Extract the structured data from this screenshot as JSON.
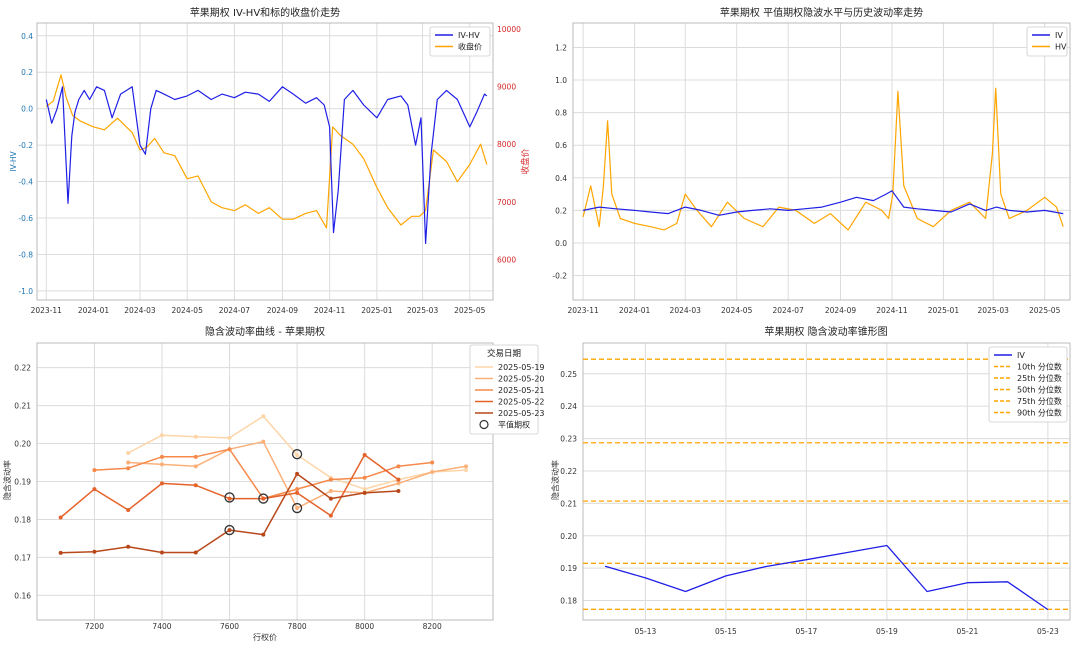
{
  "chart_data": [
    {
      "type": "line",
      "title": "苹果期权 IV-HV和标的收盘价走势",
      "xlabel": "",
      "ylabel": "IV-HV",
      "y2label": "收盘价",
      "ylim": [
        -1.05,
        0.47
      ],
      "y2lim": [
        5300,
        10100
      ],
      "yticks": [
        "0.4",
        "0.2",
        "0.0",
        "-0.2",
        "-0.4",
        "-0.6",
        "-0.8",
        "-1.0"
      ],
      "y2ticks": [
        "10000",
        "9000",
        "8000",
        "7000",
        "6000"
      ],
      "xticks": [
        "2023-11",
        "2024-01",
        "2024-03",
        "2024-05",
        "2024-07",
        "2024-09",
        "2024-11",
        "2025-01",
        "2025-03",
        "2025-05"
      ],
      "xlim": [
        "2023-10-20",
        "2025-05-31"
      ],
      "legend": [
        "IV-HV",
        "收盘价"
      ],
      "legend_position": "top-right",
      "grid": true,
      "series": [
        {
          "name": "IV-HV",
          "color": "#1f1fe6",
          "x": [
            "2023-11-01",
            "2023-11-08",
            "2023-11-15",
            "2023-11-22",
            "2023-11-29",
            "2023-12-04",
            "2023-12-08",
            "2023-12-13",
            "2023-12-20",
            "2023-12-27",
            "2024-01-05",
            "2024-01-15",
            "2024-01-25",
            "2024-02-05",
            "2024-02-20",
            "2024-03-01",
            "2024-03-08",
            "2024-03-15",
            "2024-03-22",
            "2024-04-01",
            "2024-04-15",
            "2024-05-01",
            "2024-05-15",
            "2024-06-01",
            "2024-06-15",
            "2024-07-01",
            "2024-07-15",
            "2024-08-01",
            "2024-08-15",
            "2024-09-01",
            "2024-09-15",
            "2024-10-01",
            "2024-10-15",
            "2024-10-25",
            "2024-11-01",
            "2024-11-06",
            "2024-11-12",
            "2024-11-20",
            "2024-12-01",
            "2024-12-15",
            "2025-01-01",
            "2025-01-15",
            "2025-02-01",
            "2025-02-10",
            "2025-02-20",
            "2025-02-27",
            "2025-03-05",
            "2025-03-12",
            "2025-03-20",
            "2025-04-01",
            "2025-04-15",
            "2025-05-01",
            "2025-05-10",
            "2025-05-20",
            "2025-05-23"
          ],
          "y": [
            0.05,
            -0.08,
            0.0,
            0.12,
            -0.52,
            -0.15,
            -0.02,
            0.05,
            0.1,
            0.05,
            0.12,
            0.1,
            -0.05,
            0.08,
            0.12,
            -0.2,
            -0.25,
            0.0,
            0.1,
            0.08,
            0.05,
            0.07,
            0.1,
            0.05,
            0.08,
            0.06,
            0.09,
            0.08,
            0.04,
            0.12,
            0.08,
            0.03,
            0.06,
            0.02,
            -0.1,
            -0.68,
            -0.45,
            0.05,
            0.1,
            0.02,
            -0.05,
            0.05,
            0.07,
            0.02,
            -0.2,
            -0.05,
            -0.74,
            -0.25,
            0.05,
            0.1,
            0.05,
            -0.1,
            -0.02,
            0.08,
            0.07
          ]
        },
        {
          "name": "收盘价",
          "color": "#ffa500",
          "x": [
            "2023-11-01",
            "2023-11-10",
            "2023-11-20",
            "2023-11-27",
            "2023-12-05",
            "2023-12-15",
            "2024-01-01",
            "2024-01-15",
            "2024-02-01",
            "2024-02-20",
            "2024-03-01",
            "2024-03-10",
            "2024-03-20",
            "2024-04-01",
            "2024-04-15",
            "2024-05-01",
            "2024-05-15",
            "2024-06-01",
            "2024-06-15",
            "2024-07-01",
            "2024-07-15",
            "2024-08-01",
            "2024-08-15",
            "2024-09-01",
            "2024-09-15",
            "2024-10-01",
            "2024-10-15",
            "2024-10-28",
            "2024-11-05",
            "2024-11-15",
            "2024-12-01",
            "2024-12-15",
            "2025-01-01",
            "2025-01-15",
            "2025-02-01",
            "2025-02-15",
            "2025-02-25",
            "2025-03-05",
            "2025-03-15",
            "2025-04-01",
            "2025-04-15",
            "2025-05-01",
            "2025-05-15",
            "2025-05-23"
          ],
          "y": [
            8650,
            8750,
            9200,
            8800,
            8500,
            8400,
            8300,
            8250,
            8450,
            8200,
            7900,
            7950,
            8100,
            7850,
            7800,
            7400,
            7450,
            7000,
            6900,
            6850,
            6950,
            6800,
            6900,
            6700,
            6700,
            6800,
            6850,
            6550,
            8300,
            8150,
            8000,
            7750,
            7250,
            6900,
            6600,
            6750,
            6750,
            6850,
            7900,
            7700,
            7350,
            7650,
            8000,
            7650
          ]
        }
      ]
    },
    {
      "type": "line",
      "title": "苹果期权 平值期权隐波水平与历史波动率走势",
      "xlabel": "",
      "ylabel": "",
      "ylim": [
        -0.35,
        1.35
      ],
      "yticks": [
        "1.2",
        "1.0",
        "0.8",
        "0.6",
        "0.4",
        "0.2",
        "0.0",
        "-0.2"
      ],
      "xticks": [
        "2023-11",
        "2024-01",
        "2024-03",
        "2024-05",
        "2024-07",
        "2024-09",
        "2024-11",
        "2025-01",
        "2025-03",
        "2025-05"
      ],
      "xlim": [
        "2023-10-20",
        "2025-05-31"
      ],
      "legend": [
        "IV",
        "HV"
      ],
      "legend_position": "top-right",
      "grid": true,
      "series": [
        {
          "name": "IV",
          "color": "#1f1fe6",
          "x": [
            "2023-11-01",
            "2023-11-20",
            "2023-12-10",
            "2024-01-01",
            "2024-01-20",
            "2024-02-10",
            "2024-03-01",
            "2024-03-20",
            "2024-04-10",
            "2024-05-01",
            "2024-05-20",
            "2024-06-10",
            "2024-07-01",
            "2024-07-20",
            "2024-08-10",
            "2024-09-01",
            "2024-09-20",
            "2024-10-10",
            "2024-10-25",
            "2024-11-01",
            "2024-11-15",
            "2024-12-01",
            "2024-12-20",
            "2025-01-10",
            "2025-02-01",
            "2025-02-20",
            "2025-03-05",
            "2025-03-20",
            "2025-04-10",
            "2025-05-01",
            "2025-05-23"
          ],
          "y": [
            0.2,
            0.22,
            0.21,
            0.2,
            0.19,
            0.18,
            0.22,
            0.2,
            0.17,
            0.19,
            0.2,
            0.21,
            0.2,
            0.21,
            0.22,
            0.25,
            0.28,
            0.26,
            0.3,
            0.32,
            0.22,
            0.21,
            0.2,
            0.19,
            0.24,
            0.2,
            0.22,
            0.2,
            0.19,
            0.2,
            0.18
          ]
        },
        {
          "name": "HV",
          "color": "#ffa500",
          "x": [
            "2023-11-01",
            "2023-11-10",
            "2023-11-20",
            "2023-11-25",
            "2023-11-30",
            "2023-12-05",
            "2023-12-15",
            "2024-01-01",
            "2024-01-20",
            "2024-02-05",
            "2024-02-20",
            "2024-03-01",
            "2024-03-15",
            "2024-04-01",
            "2024-04-20",
            "2024-05-10",
            "2024-06-01",
            "2024-06-20",
            "2024-07-10",
            "2024-08-01",
            "2024-08-20",
            "2024-09-10",
            "2024-10-01",
            "2024-10-20",
            "2024-10-28",
            "2024-11-02",
            "2024-11-08",
            "2024-11-15",
            "2024-12-01",
            "2024-12-20",
            "2025-01-10",
            "2025-02-01",
            "2025-02-20",
            "2025-02-28",
            "2025-03-04",
            "2025-03-10",
            "2025-03-20",
            "2025-04-10",
            "2025-05-01",
            "2025-05-15",
            "2025-05-23"
          ],
          "y": [
            0.16,
            0.35,
            0.1,
            0.35,
            0.75,
            0.3,
            0.15,
            0.12,
            0.1,
            0.08,
            0.12,
            0.3,
            0.2,
            0.1,
            0.25,
            0.15,
            0.1,
            0.22,
            0.2,
            0.12,
            0.18,
            0.08,
            0.25,
            0.2,
            0.15,
            0.3,
            0.93,
            0.35,
            0.15,
            0.1,
            0.2,
            0.25,
            0.15,
            0.55,
            0.95,
            0.3,
            0.15,
            0.2,
            0.28,
            0.22,
            0.1
          ]
        }
      ]
    },
    {
      "type": "line",
      "title": "隐含波动率曲线 - 苹果期权",
      "xlabel": "行权价",
      "ylabel": "隐含波动率",
      "xlim": [
        7030,
        8380
      ],
      "ylim": [
        0.1535,
        0.2265
      ],
      "xticks": [
        "7200",
        "7400",
        "7600",
        "7800",
        "8000",
        "8200"
      ],
      "yticks": [
        "0.22",
        "0.21",
        "0.20",
        "0.19",
        "0.18",
        "0.17",
        "0.16"
      ],
      "legend_title": "交易日期",
      "legend": [
        "2025-05-19",
        "2025-05-20",
        "2025-05-21",
        "2025-05-22",
        "2025-05-23",
        "平值期权"
      ],
      "legend_position": "top-right",
      "grid": true,
      "series": [
        {
          "name": "2025-05-19",
          "color": "#fdd5a8",
          "x": [
            7300,
            7400,
            7500,
            7600,
            7700,
            7800,
            7900,
            8000,
            8100,
            8200,
            8300
          ],
          "y": [
            0.1975,
            0.2022,
            0.2018,
            0.2015,
            0.2072,
            0.197,
            0.191,
            0.188,
            0.1905,
            0.1925,
            0.193
          ]
        },
        {
          "name": "2025-05-20",
          "color": "#fbb079",
          "x": [
            7300,
            7400,
            7500,
            7600,
            7700,
            7800,
            7900,
            8000,
            8100,
            8200,
            8300
          ],
          "y": [
            0.195,
            0.1945,
            0.194,
            0.1985,
            0.2005,
            0.183,
            0.1875,
            0.187,
            0.1895,
            0.1925,
            0.194
          ]
        },
        {
          "name": "2025-05-21",
          "color": "#f58a4b",
          "x": [
            7200,
            7300,
            7400,
            7500,
            7600,
            7700,
            7800,
            7900,
            8000,
            8100,
            8200
          ],
          "y": [
            0.193,
            0.1935,
            0.1965,
            0.1965,
            0.1985,
            0.1855,
            0.188,
            0.1905,
            0.191,
            0.194,
            0.195
          ]
        },
        {
          "name": "2025-05-22",
          "color": "#e5632b",
          "x": [
            7100,
            7200,
            7300,
            7400,
            7500,
            7600,
            7700,
            7800,
            7900,
            8000,
            8100
          ],
          "y": [
            0.1805,
            0.188,
            0.1825,
            0.1895,
            0.189,
            0.1855,
            0.1855,
            0.187,
            0.181,
            0.197,
            0.1905
          ]
        },
        {
          "name": "2025-05-23",
          "color": "#b8481a",
          "x": [
            7100,
            7200,
            7300,
            7400,
            7500,
            7600,
            7700,
            7800,
            7900,
            8000,
            8100
          ],
          "y": [
            0.1712,
            0.1715,
            0.1728,
            0.1713,
            0.1713,
            0.1772,
            0.176,
            0.192,
            0.1855,
            0.187,
            0.1875
          ]
        }
      ],
      "atm_points": [
        {
          "x": 7600,
          "y": 0.1858
        },
        {
          "x": 7700,
          "y": 0.1855
        },
        {
          "x": 7800,
          "y": 0.1972
        },
        {
          "x": 7800,
          "y": 0.183
        },
        {
          "x": 7600,
          "y": 0.1772
        }
      ]
    },
    {
      "type": "line",
      "title": "苹果期权 隐含波动率锥形图",
      "xlabel": "",
      "ylabel": "隐含波动率",
      "ylim": [
        0.174,
        0.2595
      ],
      "yticks": [
        "0.25",
        "0.24",
        "0.23",
        "0.22",
        "0.21",
        "0.20",
        "0.19",
        "0.18"
      ],
      "xticks": [
        "05-13",
        "05-15",
        "05-17",
        "05-19",
        "05-21",
        "05-23"
      ],
      "xlim": [
        "05-11.45",
        "05-23.55"
      ],
      "legend": [
        "IV",
        "10th 分位数",
        "25th 分位数",
        "50th 分位数",
        "75th 分位数",
        "90th 分位数"
      ],
      "legend_position": "top-right",
      "grid": true,
      "series": [
        {
          "name": "IV",
          "color": "#1f1fe6",
          "x": [
            "05-12",
            "05-13",
            "05-14",
            "05-15",
            "05-16",
            "05-17",
            "05-18",
            "05-19",
            "05-20",
            "05-21",
            "05-22",
            "05-23"
          ],
          "y": [
            0.1906,
            0.187,
            0.1828,
            0.1876,
            0.1905,
            0.1926,
            0.1948,
            0.197,
            0.1828,
            0.1855,
            0.1858,
            0.1772
          ]
        }
      ],
      "quantiles": [
        {
          "name": "10th 分位数",
          "value": 0.1773
        },
        {
          "name": "25th 分位数",
          "value": 0.1915
        },
        {
          "name": "50th 分位数",
          "value": 0.2107
        },
        {
          "name": "75th 分位数",
          "value": 0.2287
        },
        {
          "name": "90th 分位数",
          "value": 0.2545
        }
      ],
      "quantile_color": "#ffa500"
    }
  ]
}
